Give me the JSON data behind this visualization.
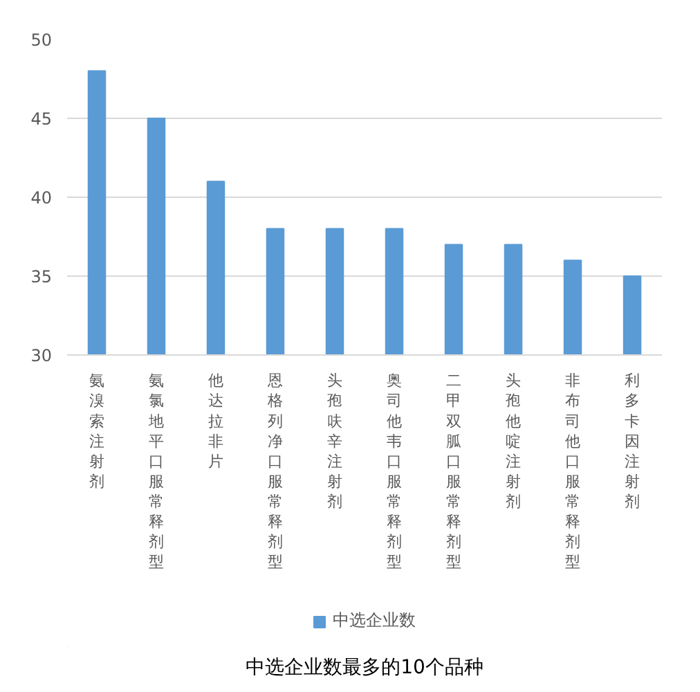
{
  "chart_data": {
    "type": "bar",
    "title": "中选企业数最多的10个品种",
    "categories": [
      "氨溴索注射剂",
      "氨氯地平口服常释剂型",
      "他达拉非片",
      "恩格列净口服常释剂型",
      "头孢呋辛注射剂",
      "奥司他韦口服常释剂型",
      "二甲双胍口服常释剂型",
      "头孢他啶注射剂",
      "非布司他口服常释剂型",
      "利多卡因注射剂"
    ],
    "series": [
      {
        "name": "中选企业数",
        "color": "#5b9bd5",
        "values": [
          48,
          45,
          41,
          38,
          38,
          38,
          37,
          37,
          36,
          35
        ]
      }
    ],
    "ylim": [
      30,
      50
    ],
    "yticks": [
      30,
      35,
      40,
      45,
      50
    ],
    "grid": "y",
    "legend": "bottom"
  }
}
